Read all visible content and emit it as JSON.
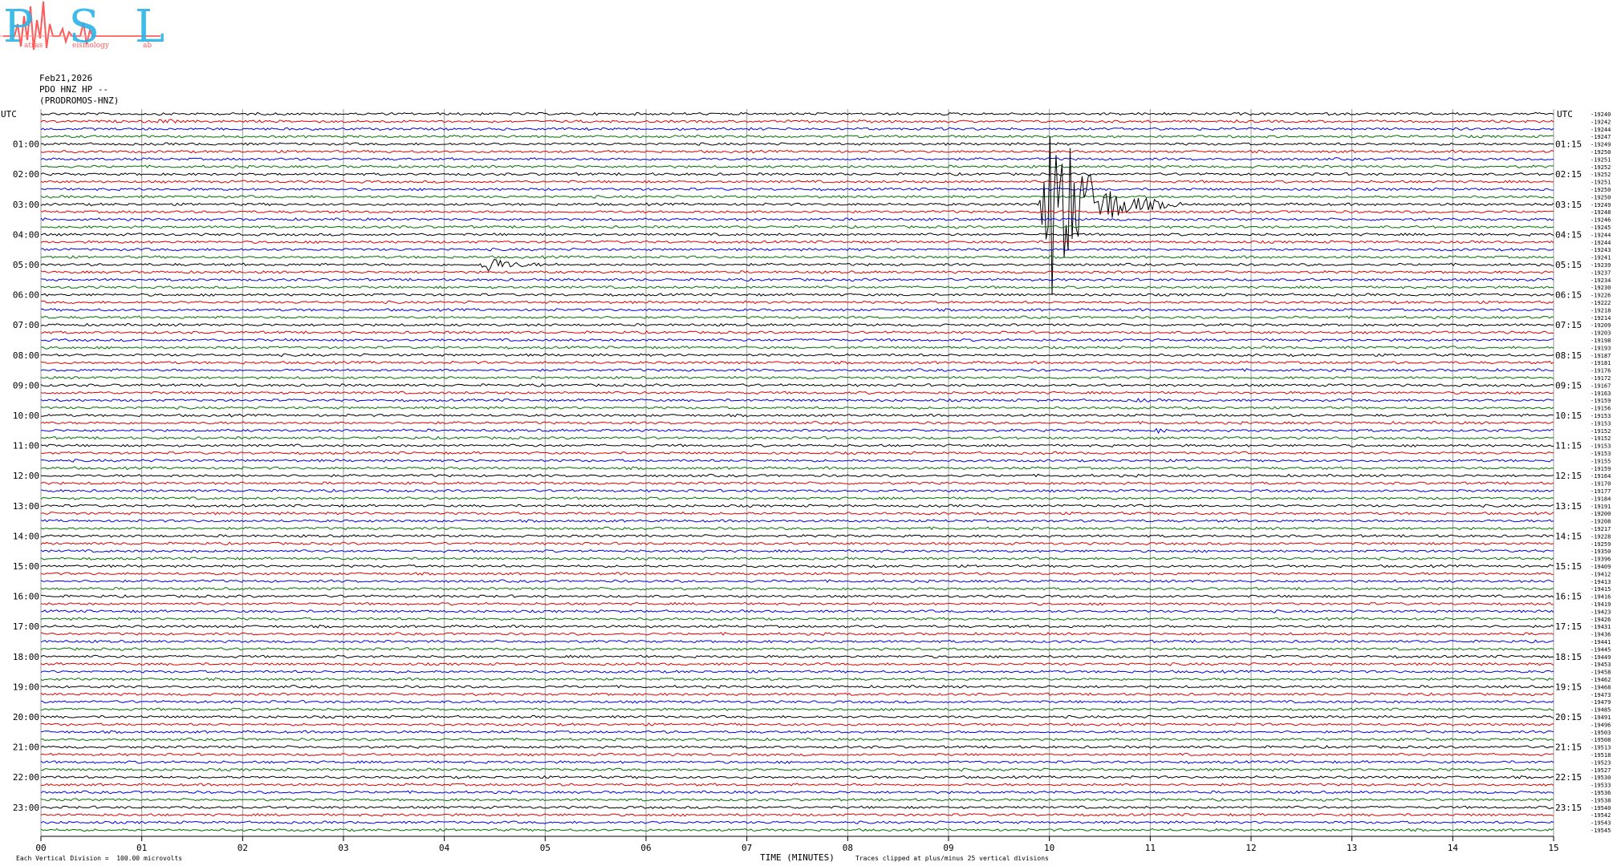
{
  "logo": {
    "letters": "PSL",
    "words": [
      "atras",
      "eismology",
      "ab"
    ]
  },
  "header": {
    "date": "Feb21,2026",
    "station_line": "PDO HNZ HP --",
    "station_name": "(PRODROMOS-HNZ)"
  },
  "footer": {
    "left_note": "Each Vertical Division =  100.00 microvolts",
    "center_note": "Traces clipped at plus/minus 25 vertical divisions"
  },
  "chart_data": {
    "type": "line",
    "title": "",
    "xlabel": "TIME (MINUTES)",
    "ylabel_left": "UTC",
    "ylabel_right": "UTC",
    "x_ticks": [
      "00",
      "01",
      "02",
      "03",
      "04",
      "05",
      "06",
      "07",
      "08",
      "09",
      "10",
      "11",
      "12",
      "13",
      "14",
      "15"
    ],
    "xlim": [
      0,
      15
    ],
    "trace_minutes": 15,
    "trace_count": 96,
    "trace_colors": [
      "#000000",
      "#e00000",
      "#0000e0",
      "#007000"
    ],
    "left_labels": [
      "01:00",
      "02:00",
      "03:00",
      "04:00",
      "05:00",
      "06:00",
      "07:00",
      "08:00",
      "09:00",
      "10:00",
      "11:00",
      "12:00",
      "13:00",
      "14:00",
      "15:00",
      "16:00",
      "17:00",
      "18:00",
      "19:00",
      "20:00",
      "21:00",
      "22:00",
      "23:00"
    ],
    "right_labels": [
      "01:15",
      "02:15",
      "03:15",
      "04:15",
      "05:15",
      "06:15",
      "07:15",
      "08:15",
      "09:15",
      "10:15",
      "11:15",
      "12:15",
      "13:15",
      "14:15",
      "15:15",
      "16:15",
      "17:15",
      "18:15",
      "19:15",
      "20:15",
      "21:15",
      "22:15",
      "23:15"
    ],
    "right_counts": [
      -19240,
      -19242,
      -19244,
      -19247,
      -19249,
      -19250,
      -19251,
      -19252,
      -19252,
      -19251,
      -19250,
      -19250,
      -19249,
      -19248,
      -19246,
      -19245,
      -19244,
      -19244,
      -19243,
      -19241,
      -19239,
      -19237,
      -19234,
      -19230,
      -19226,
      -19222,
      -19218,
      -19214,
      -19209,
      -19203,
      -19198,
      -19193,
      -19187,
      -19181,
      -19176,
      -19172,
      -19167,
      -19163,
      -19159,
      -19156,
      -19153,
      -19153,
      -19152,
      -19152,
      -19153,
      -19153,
      -19155,
      -19159,
      -19164,
      -19170,
      -19177,
      -19184,
      -19191,
      -19200,
      -19208,
      -19217,
      -19228,
      -19259,
      -19350,
      -19396,
      -19409,
      -19412,
      -19413,
      -19415,
      -19416,
      -19419,
      -19423,
      -19426,
      -19431,
      -19436,
      -19441,
      -19445,
      -19449,
      -19453,
      -19458,
      -19462,
      -19468,
      -19473,
      -19479,
      -19485,
      -19491,
      -19496,
      -19503,
      -19508,
      -19513,
      -19518,
      -19523,
      -19527,
      -19530,
      -19533,
      -19536,
      -19538,
      -19540,
      -19542,
      -19543,
      -19545
    ],
    "events": [
      {
        "trace": 1,
        "minute": 1.15,
        "duration_min": 0.5,
        "amplitude_div": 0.6
      },
      {
        "trace": 20,
        "minute": 4.35,
        "duration_min": 0.8,
        "amplitude_div": 2.5
      },
      {
        "trace": 12,
        "minute": 9.9,
        "duration_min": 1.4,
        "amplitude_div": 28
      },
      {
        "trace": 38,
        "minute": 10.85,
        "duration_min": 0.3,
        "amplitude_div": 0.5
      },
      {
        "trace": 42,
        "minute": 11.05,
        "duration_min": 0.3,
        "amplitude_div": 0.5
      }
    ]
  }
}
